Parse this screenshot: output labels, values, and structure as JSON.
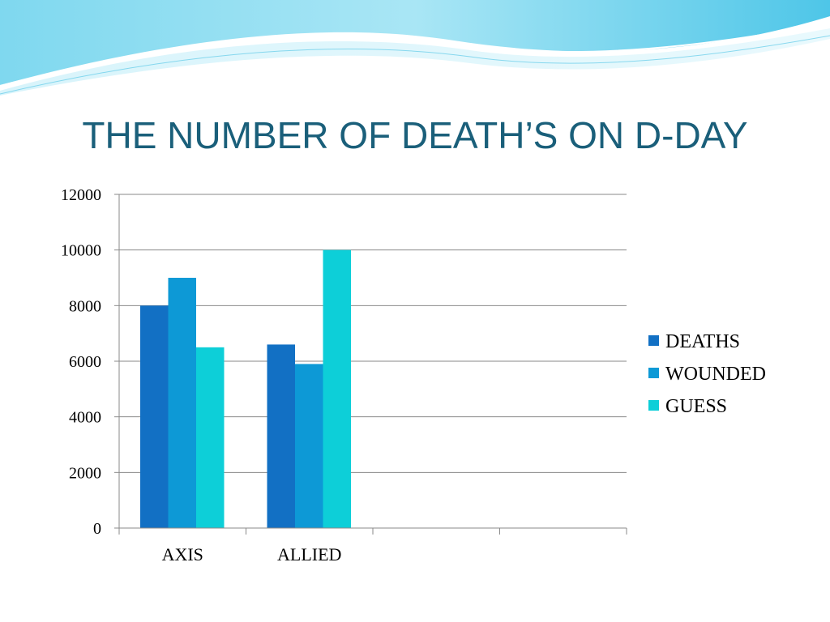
{
  "slide": {
    "title": "THE NUMBER OF DEATH’S ON D-DAY"
  },
  "colors": {
    "title": "#1a5f7a",
    "deaths": "#1270c4",
    "wounded": "#0d99d6",
    "guess": "#0dcfd8",
    "wave_dark": "#3fc2e6",
    "wave_light": "#b9eaf6"
  },
  "chart_data": {
    "type": "bar",
    "categories": [
      "AXIS",
      "ALLIED",
      "",
      ""
    ],
    "series": [
      {
        "name": "DEATHS",
        "values": [
          8000,
          6600,
          null,
          null
        ]
      },
      {
        "name": "WOUNDED",
        "values": [
          9000,
          5900,
          null,
          null
        ]
      },
      {
        "name": "GUESS",
        "values": [
          6500,
          10000,
          null,
          null
        ]
      }
    ],
    "y_ticks": [
      "0",
      "2000",
      "4000",
      "6000",
      "8000",
      "10000",
      "12000"
    ],
    "ylim": [
      0,
      12000
    ],
    "grid": true,
    "legend": "right"
  }
}
